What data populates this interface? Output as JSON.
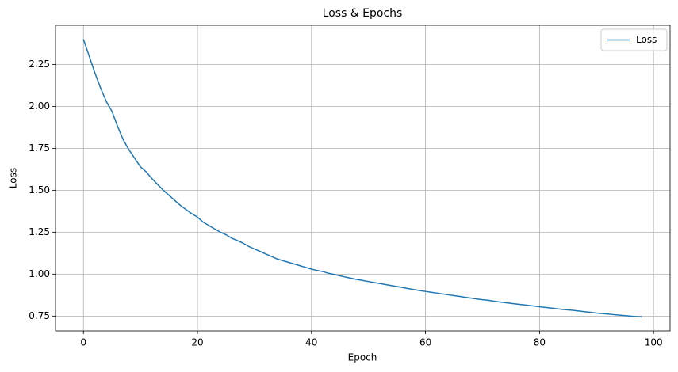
{
  "chart_data": {
    "type": "line",
    "title": "Loss & Epochs",
    "xlabel": "Epoch",
    "ylabel": "Loss",
    "x": [
      0,
      1,
      2,
      3,
      4,
      5,
      6,
      7,
      8,
      9,
      10,
      11,
      12,
      13,
      14,
      15,
      16,
      17,
      18,
      19,
      20,
      21,
      22,
      23,
      24,
      25,
      26,
      27,
      28,
      29,
      30,
      31,
      32,
      33,
      34,
      35,
      36,
      37,
      38,
      39,
      40,
      41,
      42,
      43,
      44,
      45,
      46,
      47,
      48,
      49,
      50,
      51,
      52,
      53,
      54,
      55,
      56,
      57,
      58,
      59,
      60,
      61,
      62,
      63,
      64,
      65,
      66,
      67,
      68,
      69,
      70,
      71,
      72,
      73,
      74,
      75,
      76,
      77,
      78,
      79,
      80,
      81,
      82,
      83,
      84,
      85,
      86,
      87,
      88,
      89,
      90,
      91,
      92,
      93,
      94,
      95,
      96,
      97,
      98
    ],
    "series": [
      {
        "name": "Loss",
        "color": "#1f77b4",
        "values": [
          2.4,
          2.3,
          2.2,
          2.11,
          2.03,
          1.97,
          1.88,
          1.8,
          1.74,
          1.69,
          1.64,
          1.61,
          1.57,
          1.535,
          1.5,
          1.47,
          1.44,
          1.41,
          1.385,
          1.36,
          1.34,
          1.31,
          1.29,
          1.27,
          1.25,
          1.235,
          1.215,
          1.2,
          1.185,
          1.165,
          1.15,
          1.135,
          1.12,
          1.105,
          1.09,
          1.08,
          1.07,
          1.06,
          1.05,
          1.04,
          1.03,
          1.022,
          1.015,
          1.005,
          0.998,
          0.99,
          0.982,
          0.975,
          0.968,
          0.962,
          0.956,
          0.95,
          0.944,
          0.938,
          0.932,
          0.926,
          0.92,
          0.914,
          0.908,
          0.902,
          0.897,
          0.892,
          0.887,
          0.882,
          0.877,
          0.872,
          0.867,
          0.862,
          0.857,
          0.852,
          0.848,
          0.844,
          0.839,
          0.834,
          0.83,
          0.826,
          0.822,
          0.818,
          0.814,
          0.81,
          0.806,
          0.802,
          0.798,
          0.794,
          0.79,
          0.787,
          0.784,
          0.78,
          0.776,
          0.772,
          0.768,
          0.765,
          0.762,
          0.759,
          0.756,
          0.753,
          0.75,
          0.747,
          0.745
        ]
      }
    ],
    "xlim": [
      -4.9,
      102.9
    ],
    "xticks": [
      0,
      20,
      40,
      60,
      80,
      100
    ],
    "ylim": [
      0.662,
      2.483
    ],
    "yticks": [
      0.75,
      {
        "value": 1.0,
        "label": "1.00"
      },
      1.25,
      {
        "value": 1.5,
        "label": "1.50"
      },
      1.75,
      {
        "value": 2.0,
        "label": "2.00"
      },
      2.25
    ],
    "grid": true,
    "legend": "upper right"
  }
}
